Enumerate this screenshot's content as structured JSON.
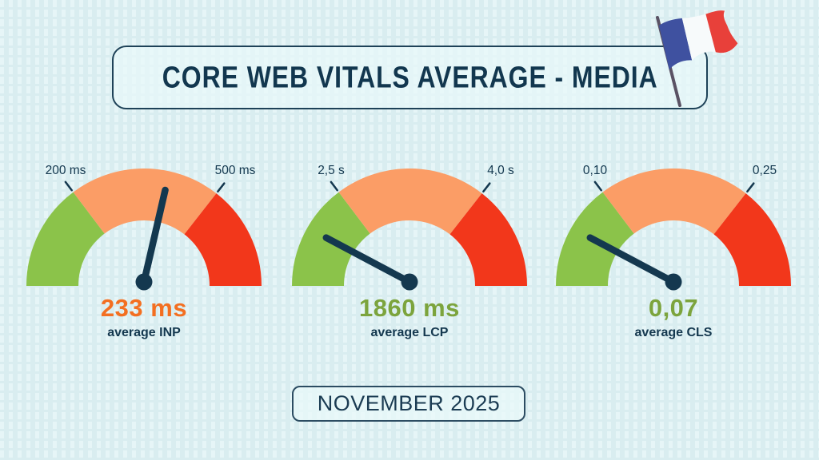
{
  "header": {
    "title": "CORE WEB VITALS AVERAGE - MEDIA"
  },
  "period_badge": {
    "label": "NOVEMBER 2025"
  },
  "flag": {
    "name": "flag-of-france",
    "blue": "#3f51a0",
    "white": "#f7fafb",
    "red": "#e8403a",
    "pole": "#5a5264"
  },
  "colors": {
    "navy": "#14384f",
    "arc_green": "#8bc34a",
    "arc_orange": "#fb9d66",
    "arc_red": "#f2371b",
    "background": "#d9edf0"
  },
  "chart_data": [
    {
      "type": "gauge",
      "metric": "INP",
      "caption": "average INP",
      "value": 233,
      "unit": "ms",
      "value_label": "233 ms",
      "value_color": "#f36f21",
      "thresholds": [
        200,
        500
      ],
      "threshold_labels": [
        "200 ms",
        "500 ms"
      ],
      "needle_angle_deg": 77,
      "segments": [
        {
          "color": "#8bc34a",
          "from_deg": 180,
          "to_deg": 127
        },
        {
          "color": "#fb9d66",
          "from_deg": 127,
          "to_deg": 52
        },
        {
          "color": "#f2371b",
          "from_deg": 52,
          "to_deg": 0
        }
      ]
    },
    {
      "type": "gauge",
      "metric": "LCP",
      "caption": "average LCP",
      "value": 1860,
      "unit": "ms",
      "value_label": "1860 ms",
      "value_color": "#7ca43d",
      "thresholds": [
        2.5,
        4.0
      ],
      "threshold_labels": [
        "2,5 s",
        "4,0 s"
      ],
      "needle_angle_deg": 152,
      "segments": [
        {
          "color": "#8bc34a",
          "from_deg": 180,
          "to_deg": 127
        },
        {
          "color": "#fb9d66",
          "from_deg": 127,
          "to_deg": 52
        },
        {
          "color": "#f2371b",
          "from_deg": 52,
          "to_deg": 0
        }
      ]
    },
    {
      "type": "gauge",
      "metric": "CLS",
      "caption": "average CLS",
      "value": 0.07,
      "unit": "",
      "value_label": "0,07",
      "value_color": "#7ca43d",
      "thresholds": [
        0.1,
        0.25
      ],
      "threshold_labels": [
        "0,10",
        "0,25"
      ],
      "needle_angle_deg": 152,
      "segments": [
        {
          "color": "#8bc34a",
          "from_deg": 180,
          "to_deg": 127
        },
        {
          "color": "#fb9d66",
          "from_deg": 127,
          "to_deg": 52
        },
        {
          "color": "#f2371b",
          "from_deg": 52,
          "to_deg": 0
        }
      ]
    }
  ]
}
